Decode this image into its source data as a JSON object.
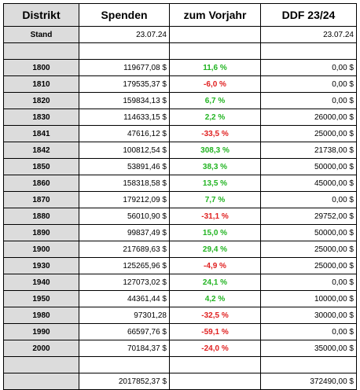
{
  "headers": {
    "col0": "Distrikt",
    "col1": "Spenden",
    "col2": "zum Vorjahr",
    "col3": "DDF 23/24"
  },
  "stand": {
    "label": "Stand",
    "spenden": "23.07.24",
    "vorjahr": "",
    "ddf": "23.07.24"
  },
  "rows": [
    {
      "d": "1800",
      "s": "119677,08 $",
      "c": "11,6 %",
      "dir": "pos",
      "f": "0,00 $"
    },
    {
      "d": "1810",
      "s": "179535,37 $",
      "c": "-6,0 %",
      "dir": "neg",
      "f": "0,00 $"
    },
    {
      "d": "1820",
      "s": "159834,13 $",
      "c": "6,7 %",
      "dir": "pos",
      "f": "0,00 $"
    },
    {
      "d": "1830",
      "s": "114633,15 $",
      "c": "2,2 %",
      "dir": "pos",
      "f": "26000,00 $"
    },
    {
      "d": "1841",
      "s": "47616,12 $",
      "c": "-33,5 %",
      "dir": "neg",
      "f": "25000,00 $"
    },
    {
      "d": "1842",
      "s": "100812,54 $",
      "c": "308,3 %",
      "dir": "pos",
      "f": "21738,00 $"
    },
    {
      "d": "1850",
      "s": "53891,46 $",
      "c": "38,3 %",
      "dir": "pos",
      "f": "50000,00 $"
    },
    {
      "d": "1860",
      "s": "158318,58 $",
      "c": "13,5 %",
      "dir": "pos",
      "f": "45000,00 $"
    },
    {
      "d": "1870",
      "s": "179212,09 $",
      "c": "7,7 %",
      "dir": "pos",
      "f": "0,00 $"
    },
    {
      "d": "1880",
      "s": "56010,90 $",
      "c": "-31,1 %",
      "dir": "neg",
      "f": "29752,00 $"
    },
    {
      "d": "1890",
      "s": "99837,49 $",
      "c": "15,0 %",
      "dir": "pos",
      "f": "50000,00 $"
    },
    {
      "d": "1900",
      "s": "217689,63 $",
      "c": "29,4 %",
      "dir": "pos",
      "f": "25000,00 $"
    },
    {
      "d": "1930",
      "s": "125265,96 $",
      "c": "-4,9 %",
      "dir": "neg",
      "f": "25000,00 $"
    },
    {
      "d": "1940",
      "s": "127073,02 $",
      "c": "24,1 %",
      "dir": "pos",
      "f": "0,00 $"
    },
    {
      "d": "1950",
      "s": "44361,44 $",
      "c": "4,2 %",
      "dir": "pos",
      "f": "10000,00 $"
    },
    {
      "d": "1980",
      "s": "97301,28",
      "c": "-32,5 %",
      "dir": "neg",
      "f": "30000,00 $"
    },
    {
      "d": "1990",
      "s": "66597,76 $",
      "c": "-59,1 %",
      "dir": "neg",
      "f": "0,00 $"
    },
    {
      "d": "2000",
      "s": "70184,37 $",
      "c": "-24,0 %",
      "dir": "neg",
      "f": "35000,00 $"
    }
  ],
  "totals": {
    "spenden": "2017852,37 $",
    "ddf": "372490,00 $"
  },
  "colors": {
    "positive": "#22b422",
    "negative": "#e02020",
    "label_bg": "#dcdcdc"
  }
}
